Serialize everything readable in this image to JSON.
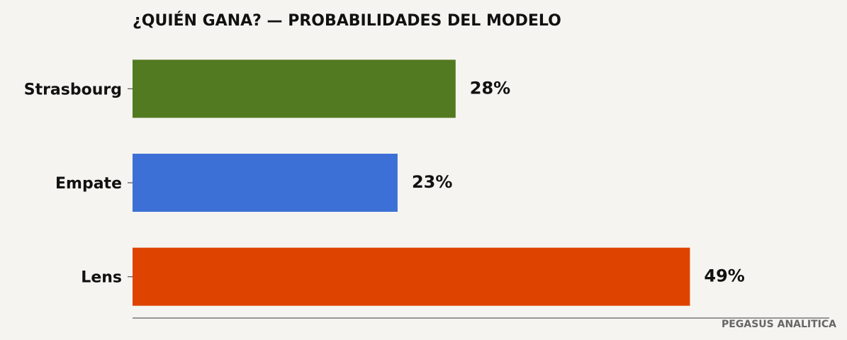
{
  "chart_data": {
    "type": "barh",
    "title": "¿QUIÉN GANA? — PROBABILIDADES DEL MODELO",
    "categories": [
      "Strasbourg",
      "Empate",
      "Lens"
    ],
    "values": [
      28.4,
      23.3,
      49.0
    ],
    "value_labels": [
      "28%",
      "23%",
      "49%"
    ],
    "colors": [
      "#527a20",
      "#3d70d6",
      "#de4300"
    ],
    "xlim": [
      0,
      61.25
    ],
    "footer": "PEGASUS ANALITICA"
  }
}
